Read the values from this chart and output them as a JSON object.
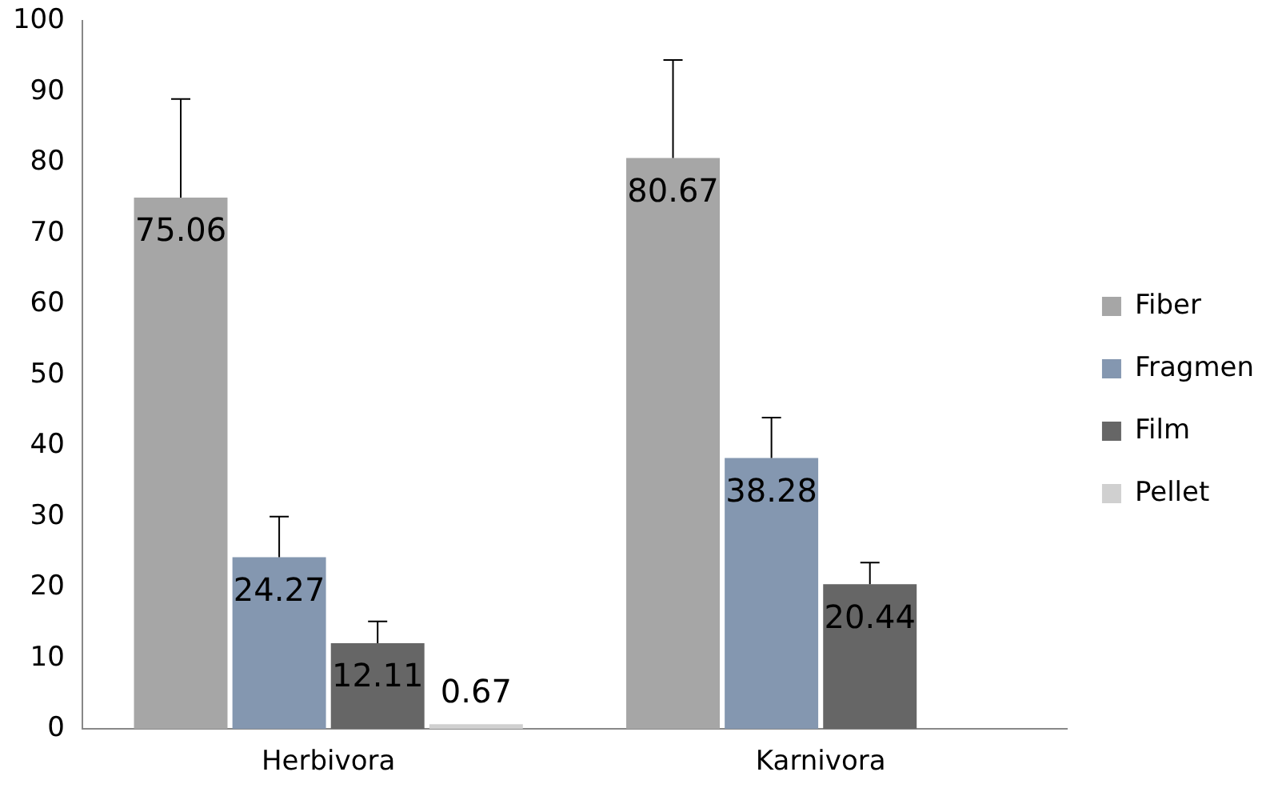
{
  "chart_data": {
    "type": "bar",
    "categories": [
      "Herbivora",
      "Karnivora"
    ],
    "series": [
      {
        "name": "Fiber",
        "color": "#a6a6a6",
        "values": [
          75.06,
          80.67
        ],
        "errors": [
          [
            75.06,
            89
          ],
          [
            80.67,
            94.5
          ]
        ]
      },
      {
        "name": "Fragmen",
        "color": "#8497b0",
        "values": [
          24.27,
          38.28
        ],
        "errors": [
          [
            24.27,
            30
          ],
          [
            38.28,
            44
          ]
        ]
      },
      {
        "name": "Film",
        "color": "#666666",
        "values": [
          12.11,
          20.44
        ],
        "errors": [
          [
            12.11,
            15.2
          ],
          [
            20.44,
            23.5
          ]
        ]
      },
      {
        "name": "Pellet",
        "color": "#d0d0d0",
        "values": [
          0.67,
          null
        ]
      }
    ],
    "ylim": [
      0,
      100
    ],
    "yticks": [
      0,
      10,
      20,
      30,
      40,
      50,
      60,
      70,
      80,
      90,
      100
    ],
    "grid": false,
    "legend": "right",
    "data_labels": true
  }
}
